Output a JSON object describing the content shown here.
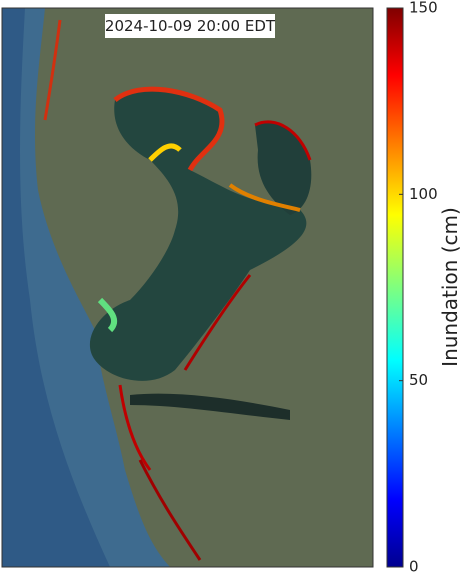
{
  "map": {
    "timestamp": "2024-10-09 20:00 EDT"
  },
  "colorbar": {
    "label": "Inundation (cm)",
    "lim": [
      0,
      150
    ],
    "ticks": [
      0,
      50,
      100,
      150
    ]
  }
}
